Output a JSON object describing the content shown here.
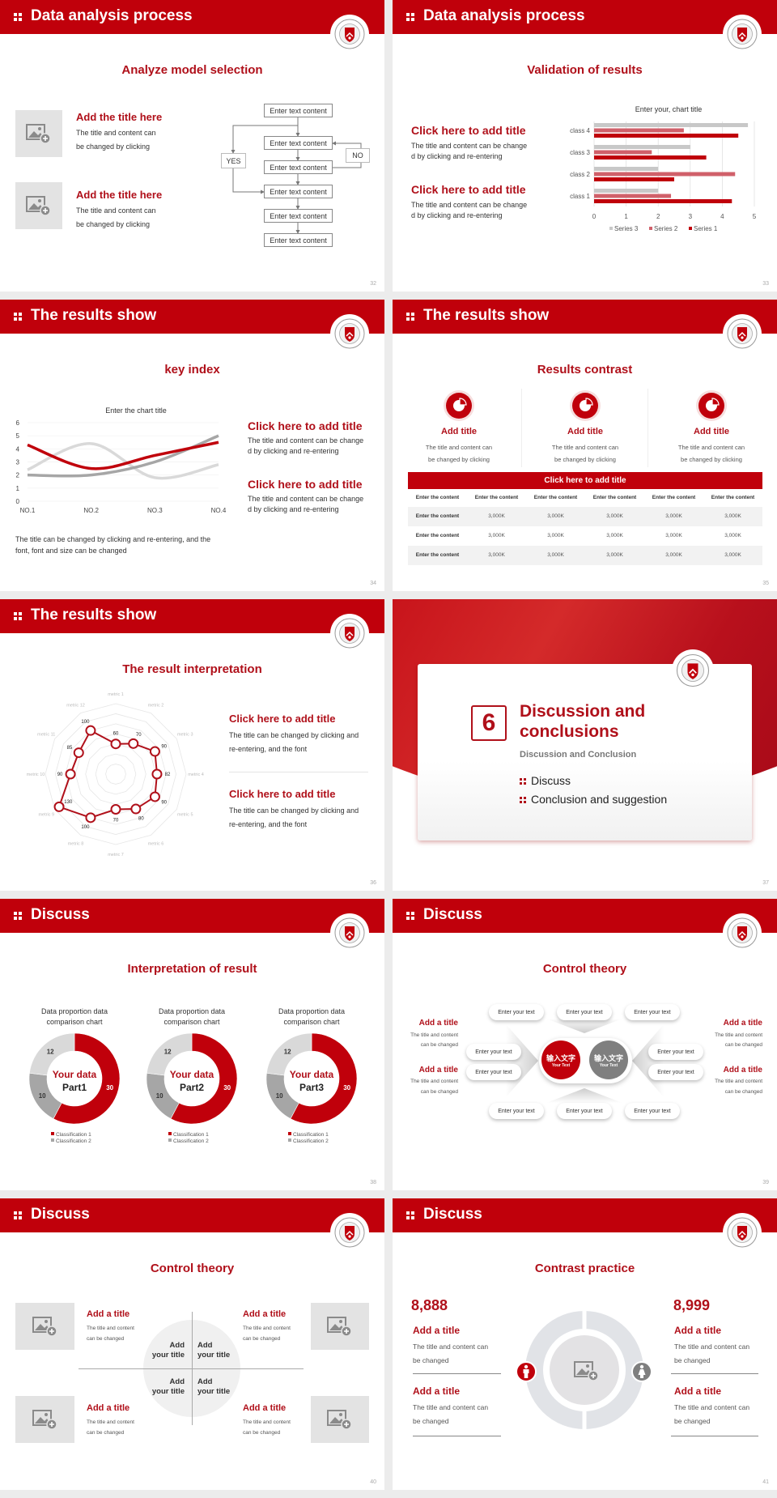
{
  "theme": {
    "red": "#c0000b",
    "title_red": "#b0101a",
    "mid_red": "#d0606a",
    "gray": "#a6a6a6",
    "light_gray": "#d9d9d9"
  },
  "slides": [
    {
      "number": "32",
      "header": "Data analysis process",
      "title": "Analyze model selection",
      "items": [
        {
          "title": "Add the title here",
          "lines": [
            "The title and content can",
            "be changed by clicking"
          ]
        },
        {
          "title": "Add the title here",
          "lines": [
            "The title and content can",
            "be changed by clicking"
          ]
        }
      ],
      "flowchart": {
        "boxes": [
          "Enter text content",
          "Enter text content",
          "Enter text content",
          "Enter text content",
          "Enter text content",
          "Enter text content"
        ],
        "yes": "YES",
        "no": "NO"
      }
    },
    {
      "number": "33",
      "header": "Data analysis process",
      "title": "Validation of results",
      "items": [
        {
          "title": "Click here to add title",
          "lines": [
            "The title and content can be change",
            "d by clicking and re-entering"
          ]
        },
        {
          "title": "Click here to add title",
          "lines": [
            "The title and content can be change",
            "d by clicking and re-entering"
          ]
        }
      ]
    },
    {
      "number": "34",
      "header": "The results show",
      "title": "key index",
      "footer_lines": [
        "The title can be changed by clicking and re-entering, and the",
        "font, font and size can be changed"
      ],
      "items": [
        {
          "title": "Click here to add title",
          "lines": [
            "The title and content can be change",
            "d by clicking and re-entering"
          ]
        },
        {
          "title": "Click here to add title",
          "lines": [
            "The title and content can be change",
            "d by clicking and re-entering"
          ]
        }
      ]
    },
    {
      "number": "35",
      "header": "The results show",
      "title": "Results contrast",
      "cards": [
        {
          "title": "Add title",
          "lines": [
            "The title and content can",
            "be changed by clicking"
          ]
        },
        {
          "title": "Add title",
          "lines": [
            "The title and content can",
            "be changed by clicking"
          ]
        },
        {
          "title": "Add title",
          "lines": [
            "The title and content can",
            "be changed by clicking"
          ]
        }
      ],
      "table": {
        "title": "Click here to add title",
        "header": [
          "Enter the content",
          "Enter the content",
          "Enter the content",
          "Enter the content",
          "Enter the content",
          "Enter the content"
        ],
        "rows": [
          [
            "Enter the content",
            "3,000K",
            "3,000K",
            "3,000K",
            "3,000K",
            "3,000K"
          ],
          [
            "Enter the content",
            "3,000K",
            "3,000K",
            "3,000K",
            "3,000K",
            "3,000K"
          ],
          [
            "Enter the content",
            "3,000K",
            "3,000K",
            "3,000K",
            "3,000K",
            "3,000K"
          ]
        ]
      }
    },
    {
      "number": "36",
      "header": "The results show",
      "title": "The result interpretation",
      "items": [
        {
          "title": "Click here to add  title",
          "lines": [
            "The title can be changed by clicking and",
            "re-entering, and the font"
          ]
        },
        {
          "title": "Click here to add  title",
          "lines": [
            "The title can be changed by clicking and",
            "re-entering, and the font"
          ]
        }
      ]
    },
    {
      "number": "37",
      "section_number": "6",
      "title_lines": [
        "Discussion and",
        "conclusions"
      ],
      "subtitle": "Discussion and Conclusion",
      "bullets": [
        "Discuss",
        "Conclusion and suggestion"
      ]
    },
    {
      "number": "38",
      "header": "Discuss",
      "title": "Interpretation of result",
      "donut_centers": [
        {
          "line1": "Your data",
          "line2": "Part1"
        },
        {
          "line1": "Your data",
          "line2": "Part2"
        },
        {
          "line1": "Your data",
          "line2": "Part3"
        }
      ]
    },
    {
      "number": "39",
      "header": "Discuss",
      "title": "Control theory",
      "center": [
        {
          "cn": "输入文字",
          "en": "Your Text"
        },
        {
          "cn": "输入文字",
          "en": "Your Text"
        }
      ],
      "pills": [
        "Enter your text",
        "Enter your text",
        "Enter your text",
        "Enter your text",
        "Enter your text",
        "Enter your text",
        "Enter your text",
        "Enter your text",
        "Enter your text",
        "Enter your text"
      ],
      "items": [
        {
          "title": "Add a title",
          "lines": [
            "The title and content",
            "can be changed"
          ]
        },
        {
          "title": "Add a title",
          "lines": [
            "The title and content",
            "can be changed"
          ]
        },
        {
          "title": "Add a title",
          "lines": [
            "The title and content",
            "can be changed"
          ]
        },
        {
          "title": "Add a title",
          "lines": [
            "The title and content",
            "can be changed"
          ]
        }
      ]
    },
    {
      "number": "40",
      "header": "Discuss",
      "title": "Control theory",
      "items": [
        {
          "title": "Add a title",
          "lines": [
            "The title and content",
            "can be changed"
          ]
        },
        {
          "title": "Add a title",
          "lines": [
            "The title and content",
            "can be changed"
          ]
        },
        {
          "title": "Add a title",
          "lines": [
            "The title and content",
            "can be changed"
          ]
        },
        {
          "title": "Add a title",
          "lines": [
            "The title and content",
            "can be changed"
          ]
        }
      ],
      "quadrants": [
        {
          "line1": "Add",
          "line2": "your title"
        },
        {
          "line1": "Add",
          "line2": "your title"
        },
        {
          "line1": "Add",
          "line2": "your title"
        },
        {
          "line1": "Add",
          "line2": "your title"
        }
      ]
    },
    {
      "number": "41",
      "header": "Discuss",
      "title": "Contrast practice",
      "left": {
        "value": "8,888",
        "items": [
          {
            "title": "Add a title",
            "lines": [
              "The title and content can",
              "be changed"
            ]
          },
          {
            "title": "Add a title",
            "lines": [
              "The title and content can",
              "be changed"
            ]
          }
        ]
      },
      "right": {
        "value": "8,999",
        "items": [
          {
            "title": "Add a title",
            "lines": [
              "The title and content can",
              "be changed"
            ]
          },
          {
            "title": "Add a title",
            "lines": [
              "The title and content can",
              "be changed"
            ]
          }
        ]
      },
      "icons": [
        "male-icon",
        "female-icon",
        "image-placeholder-icon"
      ]
    }
  ],
  "chart_data": [
    {
      "type": "bar",
      "orientation": "horizontal",
      "title": "Enter your, chart title",
      "categories": [
        "class 1",
        "class 2",
        "class 3",
        "class 4"
      ],
      "series": [
        {
          "name": "Series 1",
          "values": [
            4.3,
            2.5,
            3.5,
            4.5
          ],
          "color": "#c0000b"
        },
        {
          "name": "Series 2",
          "values": [
            2.4,
            4.4,
            1.8,
            2.8
          ],
          "color": "#d0606a"
        },
        {
          "name": "Series 3",
          "values": [
            2.0,
            2.0,
            3.0,
            4.8
          ],
          "color": "#c8c8c8"
        }
      ],
      "xlim": [
        0,
        5
      ],
      "xticks": [
        "0",
        "1",
        "2",
        "3",
        "4",
        "5"
      ],
      "grid": true,
      "legend": "bottom"
    },
    {
      "type": "line",
      "smooth": true,
      "title": "Enter the chart title",
      "categories": [
        "NO.1",
        "NO.2",
        "NO.3",
        "NO.4"
      ],
      "series": [
        {
          "values": [
            4.3,
            2.5,
            3.5,
            4.5
          ],
          "color": "#c0000b"
        },
        {
          "values": [
            2.4,
            4.4,
            1.8,
            2.8
          ],
          "color": "#d9d9d9"
        },
        {
          "values": [
            2.0,
            2.0,
            3.0,
            5.0
          ],
          "color": "#a6a6a6"
        }
      ],
      "ylim": [
        0,
        6
      ],
      "yticks": [
        "0",
        "1",
        "2",
        "3",
        "4",
        "5",
        "6"
      ],
      "grid": true,
      "legend": "none"
    },
    {
      "type": "radar",
      "categories": [
        "metric 1",
        "metric 2",
        "metric 3",
        "metric 4",
        "metric 5",
        "metric 6",
        "metric 7",
        "metric 8",
        "metric 9",
        "metric 10",
        "metric 11",
        "metric 12"
      ],
      "values": [
        60,
        70,
        90,
        82,
        90,
        80,
        70,
        100,
        130,
        90,
        85,
        100
      ],
      "labels": [
        "60",
        "70",
        "90",
        "82",
        "90",
        "80",
        "70",
        "100",
        "130",
        "90",
        "85",
        "100"
      ],
      "rlim": [
        0,
        140
      ],
      "color": "#b0101a"
    },
    {
      "type": "pie",
      "donut": true,
      "title_lines": [
        "Data proportion data",
        "comparison chart"
      ],
      "categories": [
        "Classification 1",
        "Classification 2",
        ""
      ],
      "values": [
        30,
        10,
        12
      ],
      "labels": [
        "30",
        "10",
        "12"
      ],
      "colors": [
        "#c0000b",
        "#a6a6a6",
        "#d9d9d9"
      ],
      "legend": "bottom"
    },
    {
      "type": "pie",
      "donut": true,
      "title_lines": [
        "Data proportion data",
        "comparison chart"
      ],
      "categories": [
        "Classification 1",
        "Classification 2",
        ""
      ],
      "values": [
        30,
        10,
        12
      ],
      "labels": [
        "30",
        "10",
        "12"
      ],
      "colors": [
        "#c0000b",
        "#a6a6a6",
        "#d9d9d9"
      ],
      "legend": "bottom"
    },
    {
      "type": "pie",
      "donut": true,
      "title_lines": [
        "Data proportion data",
        "comparison chart"
      ],
      "categories": [
        "Classification 1",
        "Classification 2",
        ""
      ],
      "values": [
        30,
        10,
        12
      ],
      "labels": [
        "30",
        "10",
        "12"
      ],
      "colors": [
        "#c0000b",
        "#a6a6a6",
        "#d9d9d9"
      ],
      "legend": "bottom"
    }
  ]
}
